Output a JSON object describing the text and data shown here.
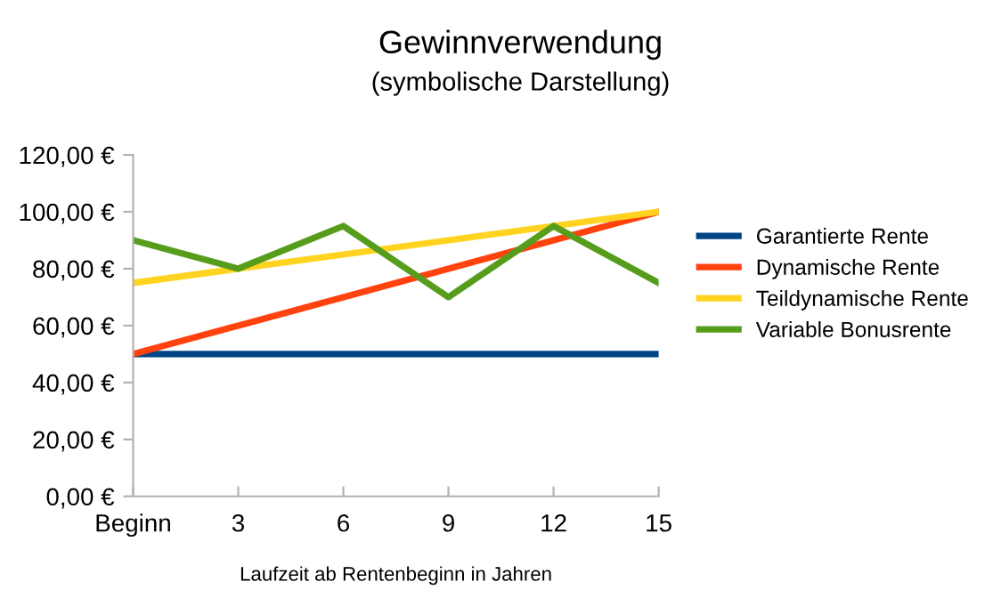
{
  "chart_data": {
    "type": "line",
    "title": "Gewinnverwendung",
    "subtitle": "(symbolische Darstellung)",
    "xlabel": "Laufzeit ab Rentenbeginn in Jahren",
    "categories": [
      "Beginn",
      "3",
      "6",
      "9",
      "12",
      "15"
    ],
    "series": [
      {
        "name": "Garantierte Rente",
        "color": "#004586",
        "values": [
          50,
          50,
          50,
          50,
          50,
          50
        ]
      },
      {
        "name": "Dynamische Rente",
        "color": "#ff420e",
        "values": [
          50,
          60,
          70,
          80,
          90,
          100
        ]
      },
      {
        "name": "Teildynamische Rente",
        "color": "#ffd320",
        "values": [
          75,
          80,
          85,
          90,
          95,
          100
        ]
      },
      {
        "name": "Variable Bonusrente",
        "color": "#579d1c",
        "values": [
          90,
          80,
          95,
          70,
          95,
          75
        ]
      }
    ],
    "ylim": [
      0,
      120
    ],
    "yticks": [
      {
        "value": 0,
        "label": "0,00 €"
      },
      {
        "value": 20,
        "label": "20,00 €"
      },
      {
        "value": 40,
        "label": "40,00 €"
      },
      {
        "value": 60,
        "label": "60,00 €"
      },
      {
        "value": 80,
        "label": "80,00 €"
      },
      {
        "value": 100,
        "label": "100,00 €"
      },
      {
        "value": 120,
        "label": "120,00 €"
      }
    ],
    "grid": false,
    "legend": "right",
    "marker": "none",
    "line_style": "solid"
  }
}
